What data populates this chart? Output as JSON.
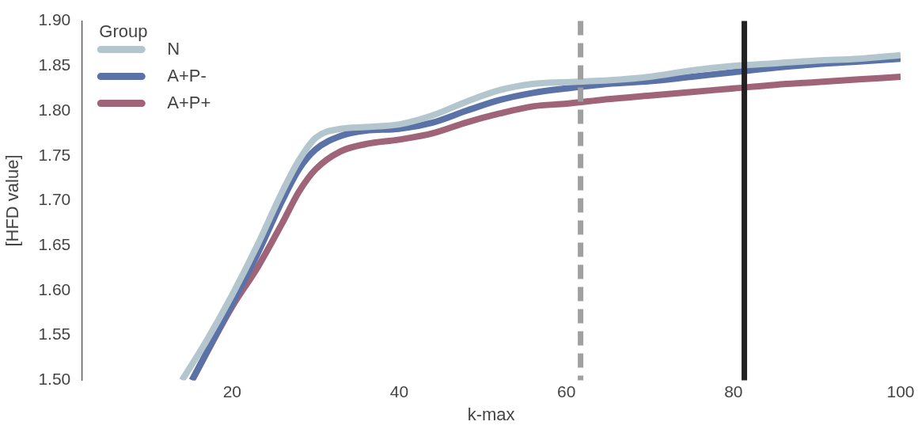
{
  "chart_data": {
    "type": "line",
    "xlabel": "k-max",
    "ylabel": "[HFD value]",
    "legend_title": "Group",
    "legend": "top left",
    "grid": false,
    "marker": "none",
    "line_style": "solid",
    "xlim": [
      2,
      100
    ],
    "xticks": [
      20,
      40,
      60,
      80,
      100
    ],
    "ylim": [
      1.5,
      1.9
    ],
    "yticks": [
      {
        "value": 1.5,
        "label": "1.50"
      },
      {
        "value": 1.55,
        "label": "1.55"
      },
      {
        "value": 1.6,
        "label": "1.60"
      },
      {
        "value": 1.65,
        "label": "1.65"
      },
      {
        "value": 1.7,
        "label": "1.70"
      },
      {
        "value": 1.75,
        "label": "1.75"
      },
      {
        "value": 1.8,
        "label": "1.80"
      },
      {
        "value": 1.85,
        "label": "1.85"
      },
      {
        "value": 1.9,
        "label": "1.90"
      }
    ],
    "ref_lines": [
      {
        "axis": "x",
        "value": 61.7,
        "color": "#a0a0a0",
        "line_style": "dashed"
      },
      {
        "axis": "x",
        "value": 81.3,
        "color": "#222222",
        "line_style": "solid"
      }
    ],
    "series": [
      {
        "name": "N",
        "color": "#b3c6cd",
        "x": [
          14,
          17,
          20,
          23,
          26,
          28,
          30,
          33,
          36,
          40,
          44,
          48,
          52,
          56,
          60,
          65,
          70,
          75,
          80,
          85,
          90,
          95,
          100
        ],
        "values": [
          1.5,
          1.545,
          1.595,
          1.65,
          1.71,
          1.745,
          1.77,
          1.78,
          1.782,
          1.785,
          1.795,
          1.81,
          1.823,
          1.83,
          1.832,
          1.834,
          1.838,
          1.845,
          1.85,
          1.853,
          1.856,
          1.858,
          1.862
        ]
      },
      {
        "name": "A+P-",
        "color": "#5a72a8",
        "x": [
          15.2,
          20,
          23,
          26,
          28,
          30,
          33,
          36,
          40,
          44,
          48,
          52,
          56,
          60,
          65,
          70,
          75,
          80,
          85,
          90,
          95,
          100
        ],
        "values": [
          1.5,
          1.585,
          1.64,
          1.7,
          1.735,
          1.757,
          1.772,
          1.778,
          1.78,
          1.787,
          1.8,
          1.812,
          1.82,
          1.825,
          1.83,
          1.833,
          1.838,
          1.843,
          1.848,
          1.852,
          1.855,
          1.858
        ]
      },
      {
        "name": "A+P+",
        "color": "#a06479",
        "x": [
          15.2,
          20,
          23,
          26,
          28,
          30,
          33,
          36,
          40,
          44,
          48,
          52,
          56,
          60,
          65,
          70,
          75,
          80,
          85,
          90,
          95,
          100
        ],
        "values": [
          1.5,
          1.582,
          1.625,
          1.675,
          1.71,
          1.735,
          1.755,
          1.763,
          1.768,
          1.775,
          1.787,
          1.797,
          1.805,
          1.808,
          1.813,
          1.817,
          1.821,
          1.825,
          1.829,
          1.832,
          1.835,
          1.838
        ]
      }
    ]
  }
}
